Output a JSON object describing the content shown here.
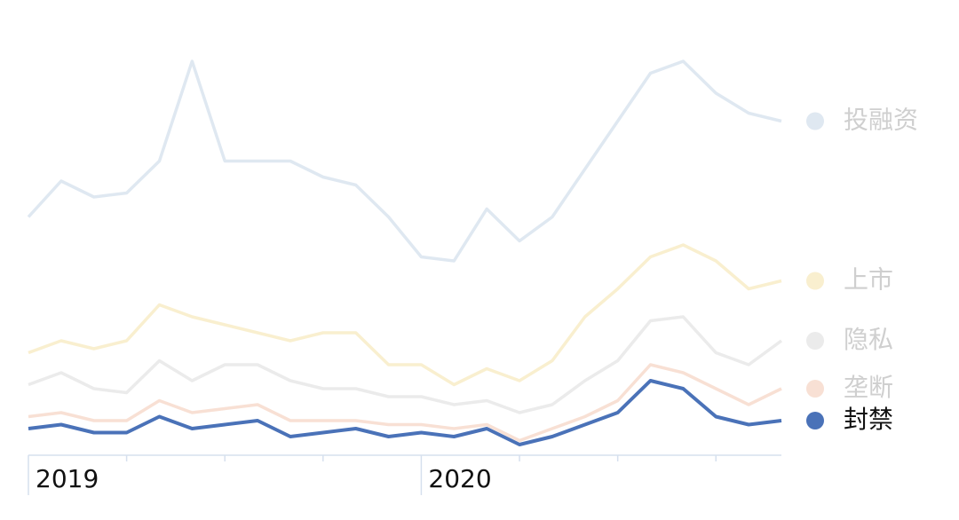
{
  "chart_data": {
    "type": "line",
    "categories": [
      "2019",
      null,
      null,
      null,
      null,
      null,
      null,
      null,
      null,
      null,
      null,
      null,
      "2020",
      null,
      null,
      null,
      null,
      null,
      null,
      null,
      null,
      null,
      null,
      null
    ],
    "ylim": [
      0,
      100
    ],
    "series": [
      {
        "name": "投融资",
        "color": "#dfe8f1",
        "label_color": "#cfcfcf",
        "values": [
          59,
          68,
          64,
          65,
          73,
          98,
          73,
          73,
          73,
          69,
          67,
          59,
          49,
          48,
          61,
          53,
          59,
          71,
          83,
          95,
          98,
          90,
          85,
          83
        ]
      },
      {
        "name": "上市",
        "color": "#f9efcf",
        "label_color": "#cfcfcf",
        "values": [
          25,
          28,
          26,
          28,
          37,
          34,
          32,
          30,
          28,
          30,
          30,
          22,
          22,
          17,
          21,
          18,
          23,
          34,
          41,
          49,
          52,
          48,
          41,
          43
        ]
      },
      {
        "name": "隐私",
        "color": "#ebebeb",
        "label_color": "#cfcfcf",
        "values": [
          17,
          20,
          16,
          15,
          23,
          18,
          22,
          22,
          18,
          16,
          16,
          14,
          14,
          12,
          13,
          10,
          12,
          18,
          23,
          33,
          34,
          25,
          22,
          28
        ]
      },
      {
        "name": "垄断",
        "color": "#f8e0d4",
        "label_color": "#cfcfcf",
        "values": [
          9,
          10,
          8,
          8,
          13,
          10,
          11,
          12,
          8,
          8,
          8,
          7,
          7,
          6,
          7,
          3,
          6,
          9,
          13,
          22,
          20,
          16,
          12,
          16
        ]
      },
      {
        "name": "封禁",
        "color": "#4a72b8",
        "label_color": "#111111",
        "values": [
          6,
          7,
          5,
          5,
          9,
          6,
          7,
          8,
          4,
          5,
          6,
          4,
          5,
          4,
          6,
          2,
          4,
          7,
          10,
          18,
          16,
          9,
          7,
          8
        ]
      }
    ]
  }
}
